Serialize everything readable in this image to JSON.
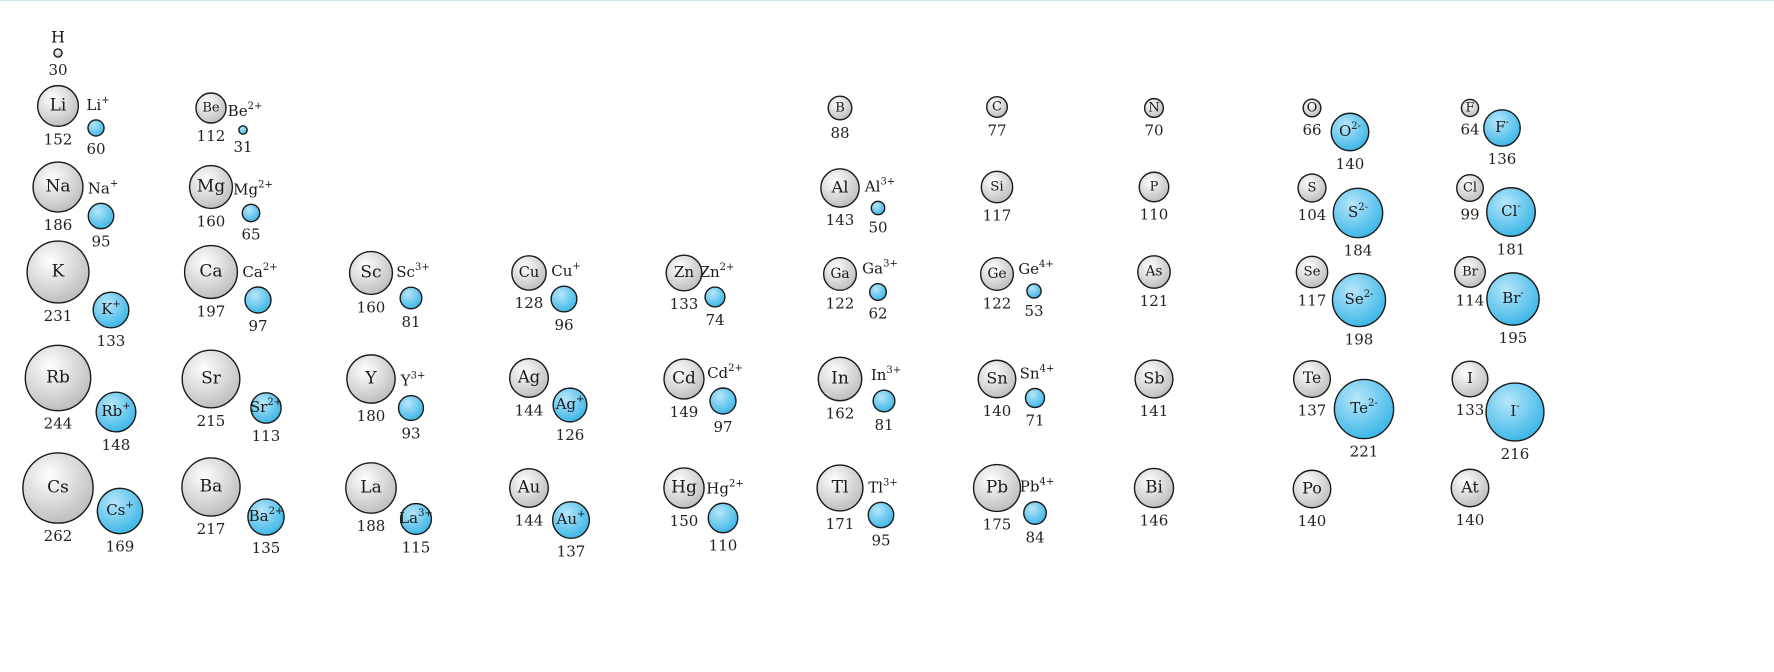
{
  "title": "",
  "colors": {
    "atom_fill_light": "#ffffff",
    "atom_fill_dark": "#b9b9b9",
    "atom_stroke": "#1a1a1a",
    "ion_fill_light": "#b7e6fa",
    "ion_fill_dark": "#33b3e6",
    "ion_stroke": "#1a1a1a"
  },
  "elements": [
    {
      "id": "H",
      "symbol": "H",
      "radius": 30,
      "ion": null
    },
    {
      "id": "Li",
      "symbol": "Li",
      "radius": 152,
      "ion": {
        "symbol": "Li",
        "charge": "+",
        "radius": 60
      }
    },
    {
      "id": "Be",
      "symbol": "Be",
      "radius": 112,
      "ion": {
        "symbol": "Be",
        "charge": "2+",
        "radius": 31
      }
    },
    {
      "id": "B",
      "symbol": "B",
      "radius": 88,
      "ion": null
    },
    {
      "id": "C",
      "symbol": "C",
      "radius": 77,
      "ion": null
    },
    {
      "id": "N",
      "symbol": "N",
      "radius": 70,
      "ion": null
    },
    {
      "id": "O",
      "symbol": "O",
      "radius": 66,
      "ion": {
        "symbol": "O",
        "charge": "2-",
        "radius": 140
      }
    },
    {
      "id": "F",
      "symbol": "F",
      "radius": 64,
      "ion": {
        "symbol": "F",
        "charge": "-",
        "radius": 136
      }
    },
    {
      "id": "Na",
      "symbol": "Na",
      "radius": 186,
      "ion": {
        "symbol": "Na",
        "charge": "+",
        "radius": 95
      }
    },
    {
      "id": "Mg",
      "symbol": "Mg",
      "radius": 160,
      "ion": {
        "symbol": "Mg",
        "charge": "2+",
        "radius": 65
      }
    },
    {
      "id": "Al",
      "symbol": "Al",
      "radius": 143,
      "ion": {
        "symbol": "Al",
        "charge": "3+",
        "radius": 50
      }
    },
    {
      "id": "Si",
      "symbol": "Si",
      "radius": 117,
      "ion": null
    },
    {
      "id": "P",
      "symbol": "P",
      "radius": 110,
      "ion": null
    },
    {
      "id": "S",
      "symbol": "S",
      "radius": 104,
      "ion": {
        "symbol": "S",
        "charge": "2-",
        "radius": 184
      }
    },
    {
      "id": "Cl",
      "symbol": "Cl",
      "radius": 99,
      "ion": {
        "symbol": "Cl",
        "charge": "-",
        "radius": 181
      }
    },
    {
      "id": "K",
      "symbol": "K",
      "radius": 231,
      "ion": {
        "symbol": "K",
        "charge": "+",
        "radius": 133
      }
    },
    {
      "id": "Ca",
      "symbol": "Ca",
      "radius": 197,
      "ion": {
        "symbol": "Ca",
        "charge": "2+",
        "radius": 97
      }
    },
    {
      "id": "Sc",
      "symbol": "Sc",
      "radius": 160,
      "ion": {
        "symbol": "Sc",
        "charge": "3+",
        "radius": 81
      }
    },
    {
      "id": "Cu",
      "symbol": "Cu",
      "radius": 128,
      "ion": {
        "symbol": "Cu",
        "charge": "+",
        "radius": 96
      }
    },
    {
      "id": "Zn",
      "symbol": "Zn",
      "radius": 133,
      "ion": {
        "symbol": "Zn",
        "charge": "2+",
        "radius": 74
      }
    },
    {
      "id": "Ga",
      "symbol": "Ga",
      "radius": 122,
      "ion": {
        "symbol": "Ga",
        "charge": "3+",
        "radius": 62
      }
    },
    {
      "id": "Ge",
      "symbol": "Ge",
      "radius": 122,
      "ion": {
        "symbol": "Ge",
        "charge": "4+",
        "radius": 53
      }
    },
    {
      "id": "As",
      "symbol": "As",
      "radius": 121,
      "ion": null
    },
    {
      "id": "Se",
      "symbol": "Se",
      "radius": 117,
      "ion": {
        "symbol": "Se",
        "charge": "2-",
        "radius": 198
      }
    },
    {
      "id": "Br",
      "symbol": "Br",
      "radius": 114,
      "ion": {
        "symbol": "Br",
        "charge": "-",
        "radius": 195
      }
    },
    {
      "id": "Rb",
      "symbol": "Rb",
      "radius": 244,
      "ion": {
        "symbol": "Rb",
        "charge": "+",
        "radius": 148
      }
    },
    {
      "id": "Sr",
      "symbol": "Sr",
      "radius": 215,
      "ion": {
        "symbol": "Sr",
        "charge": "2+",
        "radius": 113
      }
    },
    {
      "id": "Y",
      "symbol": "Y",
      "radius": 180,
      "ion": {
        "symbol": "Y",
        "charge": "3+",
        "radius": 93
      }
    },
    {
      "id": "Ag",
      "symbol": "Ag",
      "radius": 144,
      "ion": {
        "symbol": "Ag",
        "charge": "+",
        "radius": 126
      }
    },
    {
      "id": "Cd",
      "symbol": "Cd",
      "radius": 149,
      "ion": {
        "symbol": "Cd",
        "charge": "2+",
        "radius": 97
      }
    },
    {
      "id": "In",
      "symbol": "In",
      "radius": 162,
      "ion": {
        "symbol": "In",
        "charge": "3+",
        "radius": 81
      }
    },
    {
      "id": "Sn",
      "symbol": "Sn",
      "radius": 140,
      "ion": {
        "symbol": "Sn",
        "charge": "4+",
        "radius": 71
      }
    },
    {
      "id": "Sb",
      "symbol": "Sb",
      "radius": 141,
      "ion": null
    },
    {
      "id": "Te",
      "symbol": "Te",
      "radius": 137,
      "ion": {
        "symbol": "Te",
        "charge": "2-",
        "radius": 221
      }
    },
    {
      "id": "I",
      "symbol": "I",
      "radius": 133,
      "ion": {
        "symbol": "I",
        "charge": "-",
        "radius": 216
      }
    },
    {
      "id": "Cs",
      "symbol": "Cs",
      "radius": 262,
      "ion": {
        "symbol": "Cs",
        "charge": "+",
        "radius": 169
      }
    },
    {
      "id": "Ba",
      "symbol": "Ba",
      "radius": 217,
      "ion": {
        "symbol": "Ba",
        "charge": "2+",
        "radius": 135
      }
    },
    {
      "id": "La",
      "symbol": "La",
      "radius": 188,
      "ion": {
        "symbol": "La",
        "charge": "3+",
        "radius": 115
      }
    },
    {
      "id": "Au",
      "symbol": "Au",
      "radius": 144,
      "ion": {
        "symbol": "Au",
        "charge": "+",
        "radius": 137
      }
    },
    {
      "id": "Hg",
      "symbol": "Hg",
      "radius": 150,
      "ion": {
        "symbol": "Hg",
        "charge": "2+",
        "radius": 110
      }
    },
    {
      "id": "Tl",
      "symbol": "Tl",
      "radius": 171,
      "ion": {
        "symbol": "Tl",
        "charge": "3+",
        "radius": 95
      }
    },
    {
      "id": "Pb",
      "symbol": "Pb",
      "radius": 175,
      "ion": {
        "symbol": "Pb",
        "charge": "4+",
        "radius": 84
      }
    },
    {
      "id": "Bi",
      "symbol": "Bi",
      "radius": 146,
      "ion": null
    },
    {
      "id": "Po",
      "symbol": "Po",
      "radius": 140,
      "ion": null
    },
    {
      "id": "At",
      "symbol": "At",
      "radius": 140,
      "ion": null
    }
  ]
}
